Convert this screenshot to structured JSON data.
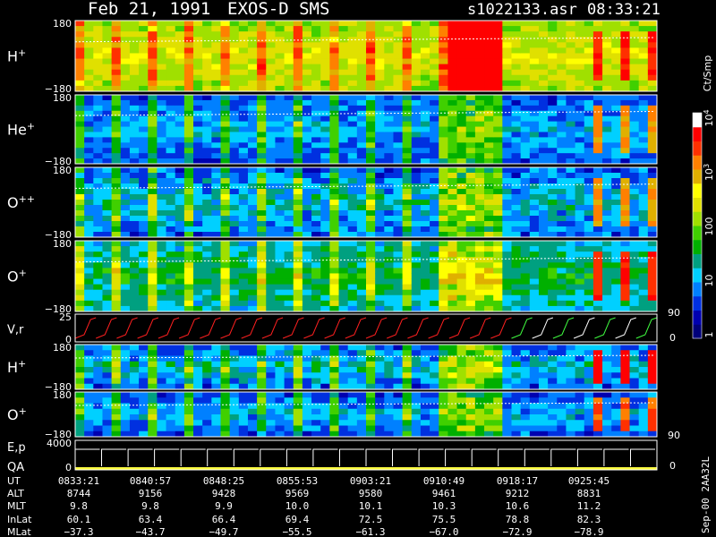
{
  "header": {
    "date": "Feb 21, 1991",
    "instrument": "EXOS-D SMS",
    "file": "s1022133.asr",
    "time": "08:33:21"
  },
  "colors": {
    "background": "#000000",
    "text": "#ffffff",
    "frame": "#ffffff",
    "trace": "#ffffff"
  },
  "chart_data": {
    "type": "heatmap",
    "panels": [
      {
        "id": "hplus",
        "label": "H",
        "sup": "+",
        "ytop": "180",
        "ybot": "−180"
      },
      {
        "id": "heplus",
        "label": "He",
        "sup": "+",
        "ytop": "180",
        "ybot": "−180"
      },
      {
        "id": "opp",
        "label": "O",
        "sup": "++",
        "ytop": "180",
        "ybot": "−180"
      },
      {
        "id": "oplus",
        "label": "O",
        "sup": "+",
        "ytop": "180",
        "ybot": "−180"
      },
      {
        "id": "vr",
        "label": "V,r",
        "sup": "",
        "ytop": "25",
        "ybot": "0",
        "rtop": "90",
        "rbot": "0"
      },
      {
        "id": "hplus2",
        "label": "H",
        "sup": "+",
        "ytop": "180",
        "ybot": "−180"
      },
      {
        "id": "oplus2",
        "label": "O",
        "sup": "+",
        "ytop": "180",
        "ybot": "−180",
        "rtop": "90"
      },
      {
        "id": "ep",
        "label": "E,p",
        "label2": "QA",
        "sup": "",
        "ytop": "4000",
        "ybot": "0",
        "rbot": "0"
      }
    ],
    "colorbar": {
      "title": "Ct/Smp",
      "scale": "log",
      "range": [
        1,
        10000
      ],
      "ticks": [
        {
          "label": "1"
        },
        {
          "label": "10"
        },
        {
          "label": "100"
        },
        {
          "label": "10",
          "sup": "3"
        },
        {
          "label": "10",
          "sup": "4"
        }
      ],
      "colors": [
        "#00007a",
        "#0000b0",
        "#0030e0",
        "#0080ff",
        "#00d0ff",
        "#00a080",
        "#00b000",
        "#40d000",
        "#a0e000",
        "#e0e000",
        "#ffff00",
        "#e0b000",
        "#ff8000",
        "#ff3000",
        "#ff0000",
        "#ffffff"
      ]
    },
    "footer": {
      "row_labels": [
        "UT",
        "ALT",
        "MLT",
        "InLat",
        "MLat"
      ],
      "columns": [
        {
          "UT": "0833:21",
          "ALT": "8744",
          "MLT": "9.8",
          "InLat": "60.1",
          "MLat": "−37.3"
        },
        {
          "UT": "0840:57",
          "ALT": "9156",
          "MLT": "9.8",
          "InLat": "63.4",
          "MLat": "−43.7"
        },
        {
          "UT": "0848:25",
          "ALT": "9428",
          "MLT": "9.9",
          "InLat": "66.4",
          "MLat": "−49.7"
        },
        {
          "UT": "0855:53",
          "ALT": "9569",
          "MLT": "10.0",
          "InLat": "69.4",
          "MLat": "−55.5"
        },
        {
          "UT": "0903:21",
          "ALT": "9580",
          "MLT": "10.1",
          "InLat": "72.5",
          "MLat": "−61.3"
        },
        {
          "UT": "0910:49",
          "ALT": "9461",
          "MLT": "10.3",
          "InLat": "75.5",
          "MLat": "−67.0"
        },
        {
          "UT": "0918:17",
          "ALT": "9212",
          "MLT": "10.6",
          "InLat": "78.8",
          "MLat": "−72.9"
        },
        {
          "UT": "0925:45",
          "ALT": "8831",
          "MLT": "11.2",
          "InLat": "82.3",
          "MLat": "−78.9"
        }
      ]
    },
    "side_note": "Sep-00 2AA32L"
  }
}
